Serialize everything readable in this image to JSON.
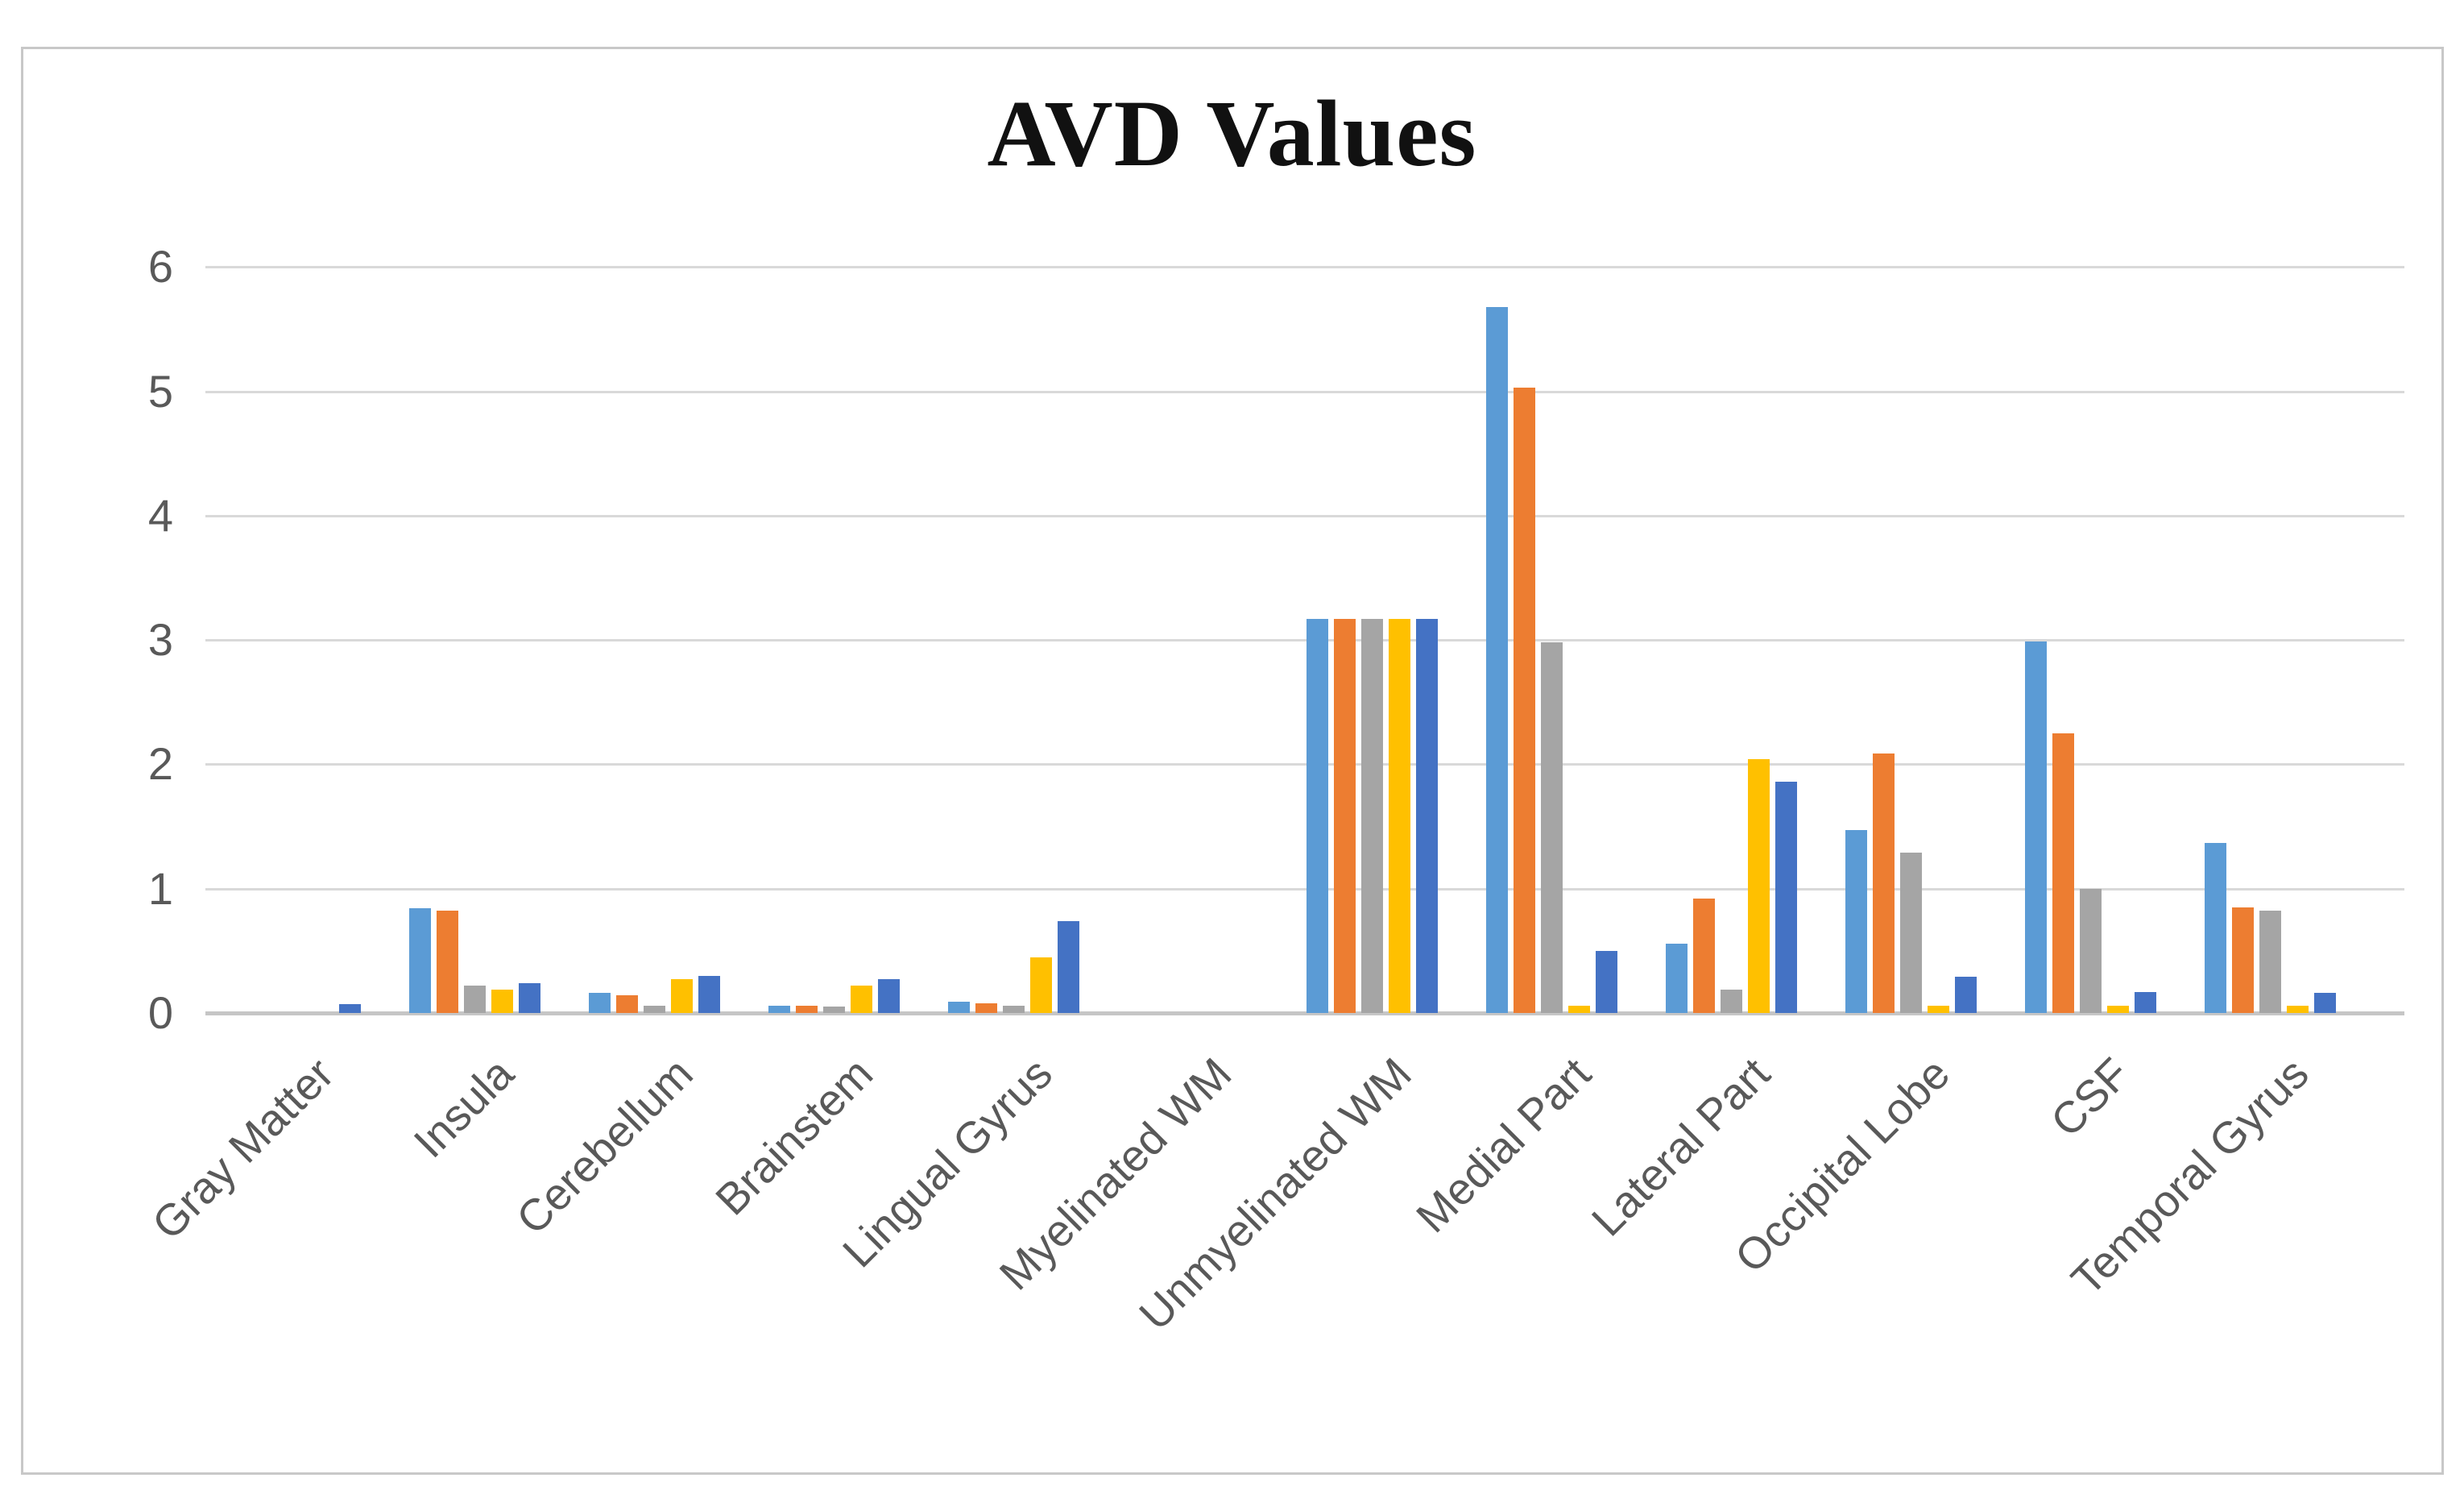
{
  "chart_data": {
    "type": "bar",
    "title": "AVD Values",
    "categories": [
      "Gray Matter",
      "Insula",
      "Cerebellum",
      "Brainstem",
      "Lingual Gyrus",
      "Myelinated WM",
      "Unmyelinated WM",
      "Medial Part",
      "Lateral Part",
      "Occipital Lobe",
      "CSF",
      "Temporal Gyrus"
    ],
    "series": [
      {
        "name": "light-blue",
        "color": "#5B9BD5",
        "values": [
          0,
          0.84,
          0.16,
          0.06,
          0.09,
          0,
          3.17,
          5.68,
          0.56,
          1.47,
          2.99,
          1.37
        ]
      },
      {
        "name": "orange",
        "color": "#ED7D31",
        "values": [
          0,
          0.82,
          0.14,
          0.06,
          0.08,
          0,
          3.17,
          5.03,
          0.92,
          2.09,
          2.25,
          0.85
        ]
      },
      {
        "name": "gray",
        "color": "#A5A5A5",
        "values": [
          0,
          0.22,
          0.06,
          0.05,
          0.06,
          0,
          3.17,
          2.98,
          0.19,
          1.29,
          1.0,
          0.82
        ]
      },
      {
        "name": "yellow",
        "color": "#FFC000",
        "values": [
          0,
          0.19,
          0.27,
          0.22,
          0.45,
          0,
          3.17,
          0.06,
          2.04,
          0.06,
          0.06,
          0.06
        ]
      },
      {
        "name": "dark-blue",
        "color": "#4472C4",
        "values": [
          0.07,
          0.24,
          0.3,
          0.27,
          0.74,
          0,
          3.17,
          0.5,
          1.86,
          0.29,
          0.17,
          0.16
        ]
      }
    ],
    "ylim": [
      0,
      6
    ],
    "yticks": [
      0,
      1,
      2,
      3,
      4,
      5,
      6
    ],
    "grid": true,
    "legend": "none",
    "axis_text_color": "#595959",
    "gridline_color": "#D9D9D9",
    "axis_line_color": "#C6C6C6",
    "background_color": "#FFFFFF"
  }
}
